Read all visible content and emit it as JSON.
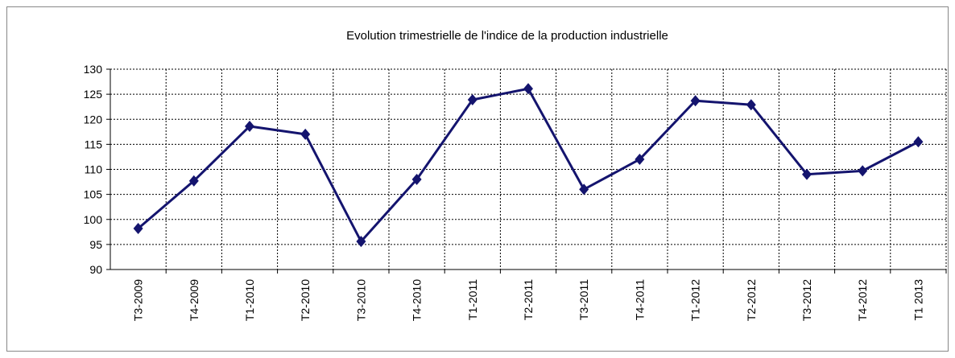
{
  "chart_data": {
    "type": "line",
    "title": "Evolution  trimestrielle de l'indice de la production industrielle",
    "categories": [
      "T3-2009",
      "T4-2009",
      "T1-2010",
      "T2-2010",
      "T3-2010",
      "T4-2010",
      "T1-2011",
      "T2-2011",
      "T3-2011",
      "T4-2011",
      "T1-2012",
      "T2-2012",
      "T3-2012",
      "T4-2012",
      "T1 2013"
    ],
    "series": [
      {
        "color": "#14146e",
        "values": [
          98.2,
          107.7,
          118.6,
          117,
          95.6,
          108,
          123.9,
          126.1,
          106,
          112,
          123.7,
          122.9,
          109,
          109.7,
          115.5
        ]
      }
    ],
    "ylim": [
      90,
      130
    ],
    "yticks": [
      90,
      95,
      100,
      105,
      110,
      115,
      120,
      125,
      130
    ],
    "grid": true
  }
}
